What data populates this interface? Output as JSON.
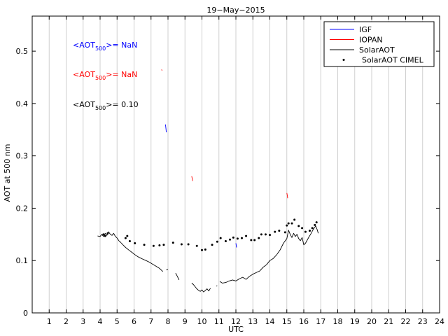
{
  "chart_data": {
    "type": "line",
    "title": "19−May−2015",
    "xlabel": "UTC",
    "ylabel": "AOT at 500 nm",
    "xlim": [
      0,
      24
    ],
    "ylim": [
      0,
      0.567
    ],
    "xticks": [
      1,
      2,
      3,
      4,
      5,
      6,
      7,
      8,
      9,
      10,
      11,
      12,
      13,
      14,
      15,
      16,
      17,
      18,
      19,
      20,
      21,
      22,
      23,
      24
    ],
    "yticks": [
      0,
      0.1,
      0.2,
      0.3,
      0.4,
      0.5
    ],
    "ytick_labels": [
      "0",
      "0.1",
      "0.2",
      "0.3",
      "0.4",
      "0.5"
    ],
    "grid": {
      "x": true,
      "y": false
    },
    "legend_position": "top-right",
    "legend": [
      {
        "label": "IGF",
        "style": "line",
        "color": "#0000ff"
      },
      {
        "label": "IOPAN",
        "style": "line",
        "color": "#ff0000"
      },
      {
        "label": "SolarAOT",
        "style": "line",
        "color": "#000000"
      },
      {
        "label": "SolarAOT CIMEL",
        "style": "dot",
        "color": "#000000"
      }
    ],
    "annotations": [
      {
        "prefix": "<AOT",
        "sub": "500",
        "suffix": ">= NaN",
        "color": "#0000ff"
      },
      {
        "prefix": "<AOT",
        "sub": "500",
        "suffix": ">= NaN",
        "color": "#ff0000"
      },
      {
        "prefix": "<AOT",
        "sub": "500",
        "suffix": ">= 0.10",
        "color": "#000000"
      }
    ],
    "series": [
      {
        "name": "IGF",
        "color": "#0000ff",
        "style": "line",
        "segments": [
          [
            [
              7.85,
              0.36
            ],
            [
              7.88,
              0.352
            ],
            [
              7.9,
              0.345
            ]
          ],
          [
            [
              12.0,
              0.133
            ],
            [
              12.02,
              0.129
            ],
            [
              12.04,
              0.125
            ]
          ]
        ]
      },
      {
        "name": "IOPAN",
        "color": "#ff0000",
        "style": "line",
        "segments": [
          [
            [
              7.62,
              0.465
            ],
            [
              7.65,
              0.463
            ]
          ],
          [
            [
              9.4,
              0.261
            ],
            [
              9.43,
              0.256
            ],
            [
              9.45,
              0.252
            ]
          ],
          [
            [
              15.0,
              0.229
            ],
            [
              15.03,
              0.224
            ],
            [
              15.05,
              0.219
            ]
          ]
        ]
      },
      {
        "name": "SolarAOT",
        "color": "#000000",
        "style": "line",
        "segments": [
          [
            [
              3.85,
              0.147
            ],
            [
              4.0,
              0.146
            ],
            [
              4.1,
              0.15
            ],
            [
              4.2,
              0.146
            ],
            [
              4.3,
              0.152
            ],
            [
              4.4,
              0.148
            ],
            [
              4.5,
              0.155
            ],
            [
              4.6,
              0.15
            ],
            [
              4.7,
              0.148
            ],
            [
              4.8,
              0.152
            ],
            [
              4.9,
              0.146
            ],
            [
              5.0,
              0.143
            ],
            [
              5.1,
              0.138
            ],
            [
              5.2,
              0.135
            ],
            [
              5.35,
              0.13
            ],
            [
              5.5,
              0.125
            ],
            [
              5.7,
              0.12
            ],
            [
              5.9,
              0.115
            ],
            [
              6.1,
              0.11
            ],
            [
              6.3,
              0.106
            ],
            [
              6.5,
              0.103
            ],
            [
              6.7,
              0.1
            ],
            [
              6.9,
              0.097
            ],
            [
              7.1,
              0.093
            ],
            [
              7.3,
              0.089
            ],
            [
              7.5,
              0.085
            ],
            [
              7.7,
              0.079
            ]
          ],
          [
            [
              7.9,
              0.082
            ],
            [
              8.0,
              0.083
            ]
          ],
          [
            [
              8.45,
              0.076
            ],
            [
              8.55,
              0.07
            ],
            [
              8.65,
              0.063
            ]
          ],
          [
            [
              9.4,
              0.057
            ],
            [
              9.5,
              0.054
            ],
            [
              9.6,
              0.05
            ],
            [
              9.7,
              0.046
            ],
            [
              9.8,
              0.043
            ],
            [
              9.9,
              0.041
            ],
            [
              10.0,
              0.044
            ],
            [
              10.1,
              0.04
            ],
            [
              10.2,
              0.043
            ],
            [
              10.3,
              0.046
            ],
            [
              10.4,
              0.042
            ],
            [
              10.5,
              0.047
            ]
          ],
          [
            [
              10.85,
              0.051
            ],
            [
              10.9,
              0.052
            ]
          ],
          [
            [
              11.05,
              0.06
            ],
            [
              11.2,
              0.057
            ],
            [
              11.4,
              0.058
            ],
            [
              11.6,
              0.061
            ],
            [
              11.8,
              0.063
            ],
            [
              12.0,
              0.061
            ],
            [
              12.2,
              0.065
            ],
            [
              12.4,
              0.068
            ],
            [
              12.6,
              0.064
            ],
            [
              12.8,
              0.07
            ],
            [
              13.0,
              0.074
            ],
            [
              13.2,
              0.077
            ],
            [
              13.4,
              0.08
            ],
            [
              13.6,
              0.087
            ],
            [
              13.8,
              0.092
            ],
            [
              14.0,
              0.1
            ],
            [
              14.2,
              0.104
            ],
            [
              14.4,
              0.111
            ],
            [
              14.6,
              0.12
            ],
            [
              14.8,
              0.133
            ],
            [
              15.0,
              0.142
            ],
            [
              15.1,
              0.158
            ],
            [
              15.2,
              0.15
            ],
            [
              15.3,
              0.144
            ],
            [
              15.4,
              0.152
            ],
            [
              15.5,
              0.146
            ],
            [
              15.6,
              0.15
            ],
            [
              15.7,
              0.142
            ],
            [
              15.8,
              0.138
            ],
            [
              15.9,
              0.144
            ],
            [
              16.0,
              0.13
            ],
            [
              16.1,
              0.133
            ],
            [
              16.2,
              0.139
            ],
            [
              16.3,
              0.145
            ],
            [
              16.4,
              0.15
            ],
            [
              16.5,
              0.156
            ],
            [
              16.6,
              0.162
            ],
            [
              16.7,
              0.166
            ],
            [
              16.8,
              0.158
            ],
            [
              16.85,
              0.152
            ]
          ]
        ]
      },
      {
        "name": "SolarAOT CIMEL",
        "color": "#000000",
        "style": "markers",
        "points": [
          [
            4.2,
            0.15
          ],
          [
            4.3,
            0.147
          ],
          [
            4.45,
            0.152
          ],
          [
            5.5,
            0.143
          ],
          [
            5.6,
            0.147
          ],
          [
            5.75,
            0.137
          ],
          [
            6.05,
            0.133
          ],
          [
            6.6,
            0.13
          ],
          [
            7.15,
            0.128
          ],
          [
            7.5,
            0.129
          ],
          [
            7.75,
            0.13
          ],
          [
            8.3,
            0.134
          ],
          [
            8.8,
            0.131
          ],
          [
            9.2,
            0.131
          ],
          [
            9.7,
            0.128
          ],
          [
            10.0,
            0.12
          ],
          [
            10.2,
            0.121
          ],
          [
            10.6,
            0.13
          ],
          [
            10.9,
            0.136
          ],
          [
            11.1,
            0.143
          ],
          [
            11.4,
            0.137
          ],
          [
            11.65,
            0.14
          ],
          [
            11.85,
            0.144
          ],
          [
            12.1,
            0.142
          ],
          [
            12.35,
            0.143
          ],
          [
            12.6,
            0.147
          ],
          [
            12.9,
            0.139
          ],
          [
            13.1,
            0.139
          ],
          [
            13.35,
            0.143
          ],
          [
            13.5,
            0.15
          ],
          [
            13.75,
            0.15
          ],
          [
            14.0,
            0.149
          ],
          [
            14.3,
            0.155
          ],
          [
            14.55,
            0.157
          ],
          [
            14.9,
            0.154
          ],
          [
            15.0,
            0.167
          ],
          [
            15.1,
            0.171
          ],
          [
            15.3,
            0.171
          ],
          [
            15.45,
            0.178
          ],
          [
            15.7,
            0.166
          ],
          [
            15.9,
            0.162
          ],
          [
            16.1,
            0.155
          ],
          [
            16.35,
            0.157
          ],
          [
            16.5,
            0.162
          ],
          [
            16.65,
            0.168
          ],
          [
            16.75,
            0.173
          ]
        ]
      }
    ]
  }
}
